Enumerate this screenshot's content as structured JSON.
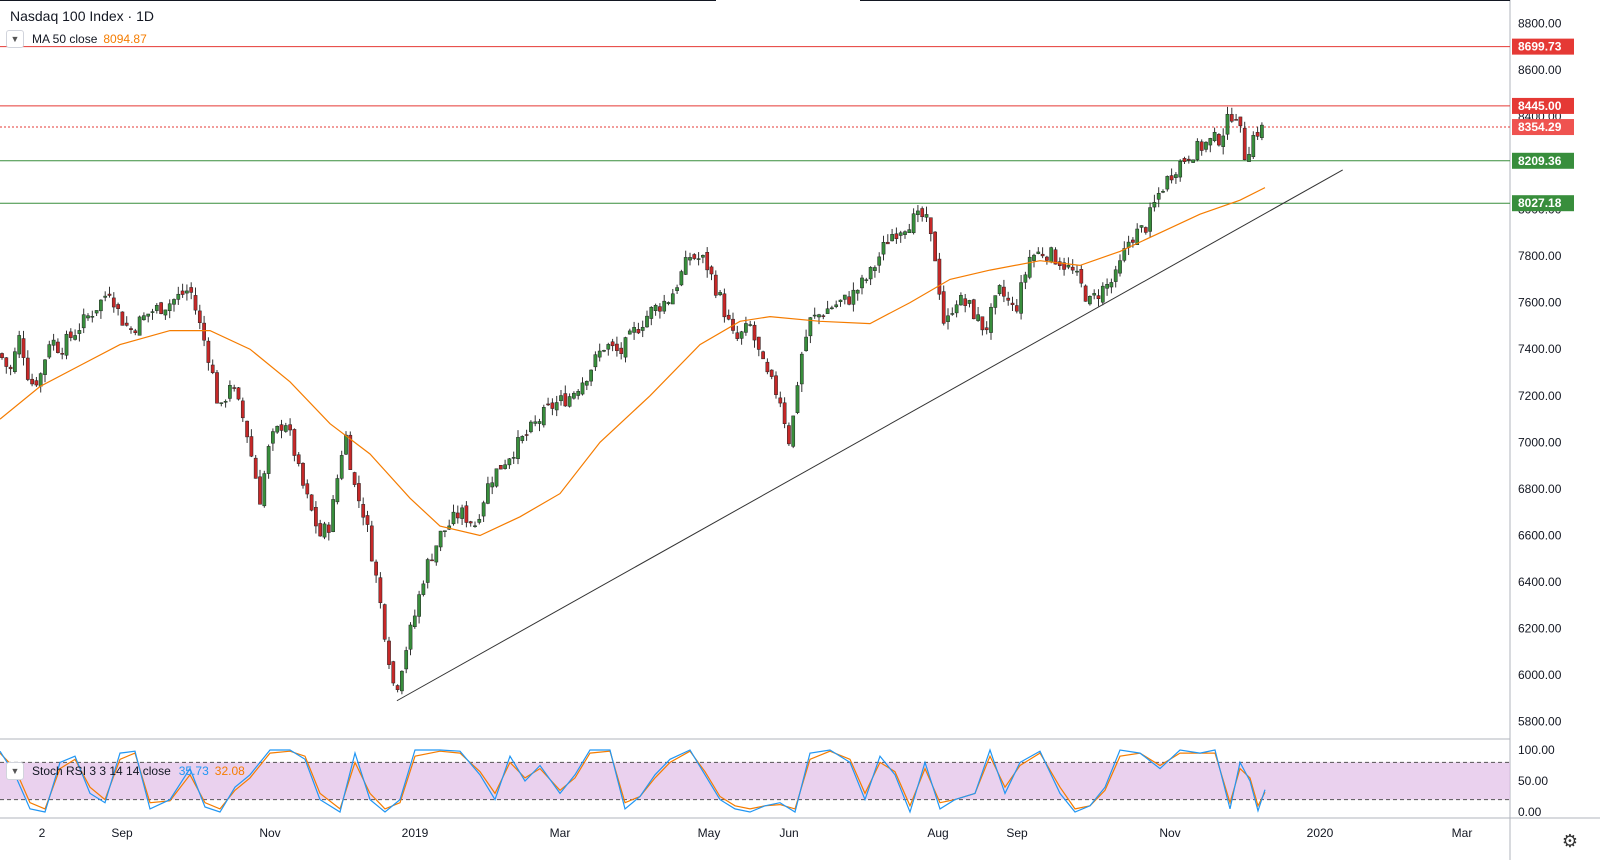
{
  "chart_data": {
    "type": "candlestick",
    "title": "Nasdaq 100 Index · 1D",
    "x_ticks": [
      "2",
      "Sep",
      "Nov",
      "2019",
      "Mar",
      "May",
      "Jun",
      "Aug",
      "Sep",
      "Nov",
      "2020",
      "Mar"
    ],
    "y_ticks": [
      5800,
      6000,
      6200,
      6400,
      6600,
      6800,
      7000,
      7200,
      7400,
      7600,
      7800,
      8000,
      8200,
      8400,
      8600,
      8800
    ],
    "ylim": [
      5730,
      8900
    ],
    "horizontal_levels": [
      {
        "value": 8699.73,
        "label": "8699.73",
        "color": "#e53935",
        "style": "solid"
      },
      {
        "value": 8445.0,
        "label": "8445.00",
        "color": "#e53935",
        "style": "solid"
      },
      {
        "value": 8354.29,
        "label": "8354.29",
        "color": "#e53935",
        "style": "dotted"
      },
      {
        "value": 8209.36,
        "label": "8209.36",
        "color": "#388e3c",
        "style": "solid"
      },
      {
        "value": 8027.18,
        "label": "8027.18",
        "color": "#388e3c",
        "style": "solid"
      }
    ],
    "trendline": {
      "from": [
        0.49,
        5890
      ],
      "to": [
        1.67,
        8170
      ]
    },
    "price_anchors": [
      [
        0,
        7380
      ],
      [
        10,
        7300
      ],
      [
        20,
        7460
      ],
      [
        30,
        7250
      ],
      [
        40,
        7280
      ],
      [
        50,
        7450
      ],
      [
        60,
        7400
      ],
      [
        80,
        7500
      ],
      [
        100,
        7600
      ],
      [
        110,
        7660
      ],
      [
        120,
        7540
      ],
      [
        130,
        7480
      ],
      [
        150,
        7560
      ],
      [
        170,
        7600
      ],
      [
        190,
        7660
      ],
      [
        200,
        7500
      ],
      [
        210,
        7350
      ],
      [
        220,
        7120
      ],
      [
        230,
        7260
      ],
      [
        245,
        7080
      ],
      [
        260,
        6760
      ],
      [
        270,
        7000
      ],
      [
        285,
        7100
      ],
      [
        295,
        6950
      ],
      [
        300,
        6850
      ],
      [
        310,
        6720
      ],
      [
        320,
        6600
      ],
      [
        330,
        6650
      ],
      [
        345,
        7050
      ],
      [
        355,
        6800
      ],
      [
        365,
        6680
      ],
      [
        375,
        6450
      ],
      [
        385,
        6180
      ],
      [
        395,
        5920
      ],
      [
        405,
        6100
      ],
      [
        415,
        6260
      ],
      [
        425,
        6450
      ],
      [
        440,
        6600
      ],
      [
        460,
        6700
      ],
      [
        475,
        6650
      ],
      [
        490,
        6840
      ],
      [
        510,
        6950
      ],
      [
        530,
        7050
      ],
      [
        550,
        7150
      ],
      [
        570,
        7200
      ],
      [
        585,
        7280
      ],
      [
        605,
        7420
      ],
      [
        620,
        7380
      ],
      [
        635,
        7480
      ],
      [
        650,
        7560
      ],
      [
        670,
        7620
      ],
      [
        690,
        7800
      ],
      [
        705,
        7780
      ],
      [
        720,
        7620
      ],
      [
        735,
        7430
      ],
      [
        750,
        7500
      ],
      [
        765,
        7300
      ],
      [
        780,
        7190
      ],
      [
        790,
        6990
      ],
      [
        800,
        7350
      ],
      [
        810,
        7520
      ],
      [
        830,
        7580
      ],
      [
        850,
        7620
      ],
      [
        870,
        7720
      ],
      [
        890,
        7890
      ],
      [
        910,
        7950
      ],
      [
        925,
        7970
      ],
      [
        935,
        7800
      ],
      [
        945,
        7480
      ],
      [
        955,
        7620
      ],
      [
        970,
        7580
      ],
      [
        985,
        7480
      ],
      [
        1000,
        7650
      ],
      [
        1015,
        7560
      ],
      [
        1030,
        7800
      ],
      [
        1045,
        7820
      ],
      [
        1060,
        7780
      ],
      [
        1075,
        7720
      ],
      [
        1090,
        7600
      ],
      [
        1100,
        7650
      ],
      [
        1115,
        7700
      ],
      [
        1130,
        7880
      ],
      [
        1145,
        7920
      ],
      [
        1160,
        8080
      ],
      [
        1175,
        8180
      ],
      [
        1190,
        8240
      ],
      [
        1205,
        8280
      ],
      [
        1220,
        8310
      ],
      [
        1235,
        8440
      ],
      [
        1245,
        8230
      ],
      [
        1255,
        8330
      ],
      [
        1265,
        8354
      ]
    ],
    "ma50": {
      "label": "MA 50 close",
      "value": "8094.87",
      "color": "#f57c00",
      "anchors": [
        [
          0,
          7100
        ],
        [
          40,
          7240
        ],
        [
          80,
          7330
        ],
        [
          120,
          7420
        ],
        [
          170,
          7480
        ],
        [
          210,
          7480
        ],
        [
          250,
          7400
        ],
        [
          290,
          7260
        ],
        [
          330,
          7080
        ],
        [
          370,
          6950
        ],
        [
          410,
          6760
        ],
        [
          440,
          6640
        ],
        [
          480,
          6600
        ],
        [
          520,
          6680
        ],
        [
          560,
          6780
        ],
        [
          600,
          7000
        ],
        [
          650,
          7200
        ],
        [
          700,
          7420
        ],
        [
          740,
          7520
        ],
        [
          770,
          7540
        ],
        [
          820,
          7520
        ],
        [
          870,
          7510
        ],
        [
          910,
          7600
        ],
        [
          950,
          7700
        ],
        [
          990,
          7740
        ],
        [
          1040,
          7780
        ],
        [
          1080,
          7760
        ],
        [
          1120,
          7820
        ],
        [
          1160,
          7900
        ],
        [
          1200,
          7980
        ],
        [
          1240,
          8040
        ],
        [
          1265,
          8094
        ]
      ]
    },
    "stoch_rsi": {
      "label": "Stoch RSI 3 3 14 14 close",
      "k_value": "35.73",
      "d_value": "32.08",
      "k_color": "#2196f3",
      "d_color": "#f57c00",
      "y_ticks": [
        "100.00",
        "50.00",
        "0.00"
      ],
      "band": [
        20,
        80
      ],
      "k_anchors": [
        [
          0,
          98
        ],
        [
          15,
          60
        ],
        [
          30,
          5
        ],
        [
          45,
          0
        ],
        [
          60,
          80
        ],
        [
          75,
          90
        ],
        [
          90,
          30
        ],
        [
          105,
          15
        ],
        [
          120,
          95
        ],
        [
          135,
          98
        ],
        [
          150,
          5
        ],
        [
          170,
          20
        ],
        [
          190,
          70
        ],
        [
          205,
          8
        ],
        [
          220,
          0
        ],
        [
          235,
          40
        ],
        [
          250,
          60
        ],
        [
          270,
          100
        ],
        [
          290,
          100
        ],
        [
          305,
          85
        ],
        [
          320,
          20
        ],
        [
          340,
          0
        ],
        [
          355,
          95
        ],
        [
          370,
          20
        ],
        [
          385,
          0
        ],
        [
          400,
          20
        ],
        [
          415,
          100
        ],
        [
          440,
          100
        ],
        [
          460,
          98
        ],
        [
          480,
          60
        ],
        [
          495,
          20
        ],
        [
          510,
          90
        ],
        [
          525,
          50
        ],
        [
          540,
          75
        ],
        [
          560,
          30
        ],
        [
          575,
          60
        ],
        [
          590,
          100
        ],
        [
          610,
          100
        ],
        [
          625,
          5
        ],
        [
          640,
          25
        ],
        [
          655,
          60
        ],
        [
          670,
          85
        ],
        [
          690,
          100
        ],
        [
          705,
          60
        ],
        [
          720,
          20
        ],
        [
          735,
          5
        ],
        [
          750,
          0
        ],
        [
          765,
          10
        ],
        [
          780,
          15
        ],
        [
          795,
          0
        ],
        [
          810,
          95
        ],
        [
          830,
          100
        ],
        [
          850,
          80
        ],
        [
          865,
          20
        ],
        [
          880,
          90
        ],
        [
          895,
          60
        ],
        [
          910,
          0
        ],
        [
          925,
          80
        ],
        [
          940,
          5
        ],
        [
          955,
          20
        ],
        [
          975,
          30
        ],
        [
          990,
          100
        ],
        [
          1005,
          30
        ],
        [
          1020,
          80
        ],
        [
          1040,
          98
        ],
        [
          1060,
          30
        ],
        [
          1075,
          0
        ],
        [
          1090,
          10
        ],
        [
          1105,
          40
        ],
        [
          1120,
          100
        ],
        [
          1140,
          95
        ],
        [
          1160,
          70
        ],
        [
          1180,
          100
        ],
        [
          1200,
          95
        ],
        [
          1215,
          100
        ],
        [
          1230,
          5
        ],
        [
          1240,
          80
        ],
        [
          1250,
          50
        ],
        [
          1258,
          2
        ],
        [
          1265,
          36
        ]
      ],
      "d_anchors": [
        [
          0,
          95
        ],
        [
          15,
          70
        ],
        [
          30,
          15
        ],
        [
          45,
          5
        ],
        [
          60,
          70
        ],
        [
          75,
          85
        ],
        [
          90,
          40
        ],
        [
          105,
          20
        ],
        [
          120,
          85
        ],
        [
          135,
          95
        ],
        [
          150,
          15
        ],
        [
          170,
          18
        ],
        [
          190,
          60
        ],
        [
          205,
          15
        ],
        [
          220,
          5
        ],
        [
          235,
          35
        ],
        [
          250,
          55
        ],
        [
          270,
          95
        ],
        [
          290,
          98
        ],
        [
          305,
          90
        ],
        [
          320,
          30
        ],
        [
          340,
          5
        ],
        [
          355,
          80
        ],
        [
          370,
          30
        ],
        [
          385,
          5
        ],
        [
          400,
          15
        ],
        [
          415,
          90
        ],
        [
          440,
          98
        ],
        [
          460,
          95
        ],
        [
          480,
          65
        ],
        [
          495,
          30
        ],
        [
          510,
          80
        ],
        [
          525,
          55
        ],
        [
          540,
          70
        ],
        [
          560,
          35
        ],
        [
          575,
          55
        ],
        [
          590,
          95
        ],
        [
          610,
          98
        ],
        [
          625,
          15
        ],
        [
          640,
          25
        ],
        [
          655,
          55
        ],
        [
          670,
          80
        ],
        [
          690,
          98
        ],
        [
          705,
          65
        ],
        [
          720,
          25
        ],
        [
          735,
          10
        ],
        [
          750,
          5
        ],
        [
          765,
          10
        ],
        [
          780,
          12
        ],
        [
          795,
          5
        ],
        [
          810,
          85
        ],
        [
          830,
          98
        ],
        [
          850,
          85
        ],
        [
          865,
          30
        ],
        [
          880,
          80
        ],
        [
          895,
          65
        ],
        [
          910,
          10
        ],
        [
          925,
          70
        ],
        [
          940,
          15
        ],
        [
          955,
          20
        ],
        [
          975,
          30
        ],
        [
          990,
          90
        ],
        [
          1005,
          40
        ],
        [
          1020,
          75
        ],
        [
          1040,
          95
        ],
        [
          1060,
          40
        ],
        [
          1075,
          5
        ],
        [
          1090,
          10
        ],
        [
          1105,
          35
        ],
        [
          1120,
          90
        ],
        [
          1140,
          95
        ],
        [
          1160,
          75
        ],
        [
          1180,
          95
        ],
        [
          1200,
          95
        ],
        [
          1215,
          95
        ],
        [
          1230,
          15
        ],
        [
          1240,
          70
        ],
        [
          1250,
          55
        ],
        [
          1258,
          10
        ],
        [
          1265,
          32
        ]
      ]
    }
  },
  "icons": {
    "collapse": "chevron-down-icon",
    "settings": "gear-icon"
  }
}
